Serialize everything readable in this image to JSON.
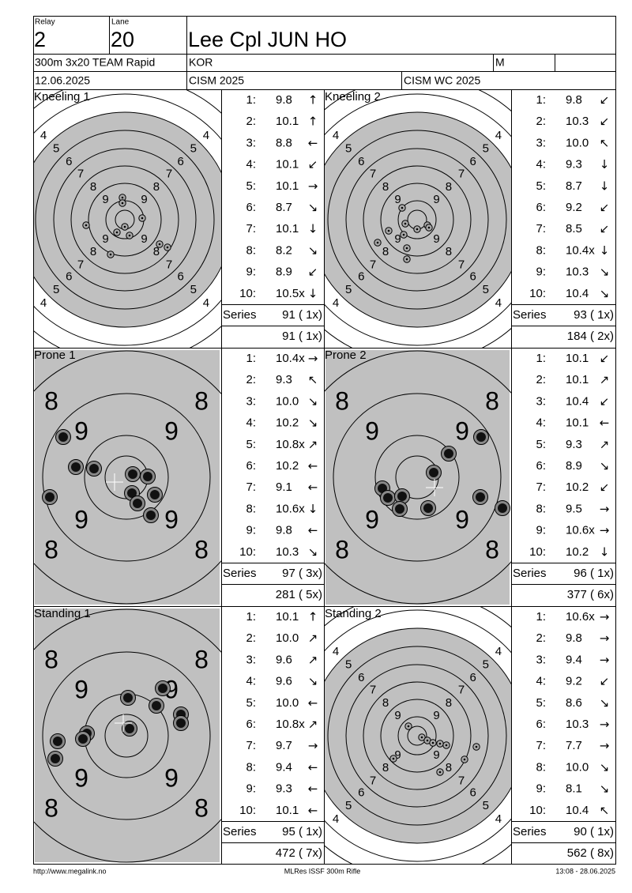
{
  "header": {
    "relay_label": "Relay",
    "relay": "2",
    "lane_label": "Lane",
    "lane": "20",
    "name": "Lee Cpl JUN HO",
    "event": "300m 3x20 TEAM Rapid",
    "nation": "KOR",
    "gender": "M",
    "date": "12.06.2025",
    "competition": "CISM 2025",
    "match": "CISM WC 2025"
  },
  "series": [
    {
      "title": "Kneeling 1",
      "ring_labels": [
        "4",
        "5",
        "6",
        "7",
        "8",
        "9"
      ],
      "shots": [
        {
          "no": "1:",
          "score": "9.8",
          "dir": "↑"
        },
        {
          "no": "2:",
          "score": "10.1",
          "dir": "↑"
        },
        {
          "no": "3:",
          "score": "8.8",
          "dir": "←"
        },
        {
          "no": "4:",
          "score": "10.1",
          "dir": "↙"
        },
        {
          "no": "5:",
          "score": "10.1",
          "dir": "→"
        },
        {
          "no": "6:",
          "score": "8.7",
          "dir": "↘"
        },
        {
          "no": "7:",
          "score": "10.1",
          "dir": "↓"
        },
        {
          "no": "8:",
          "score": "8.2",
          "dir": "↘"
        },
        {
          "no": "9:",
          "score": "8.9",
          "dir": "↙"
        },
        {
          "no": "10:",
          "score": "10.5x",
          "dir": "↓"
        }
      ],
      "series_label": "Series",
      "series_total": "91 ( 1x)",
      "cumulative": "91 ( 1x)"
    },
    {
      "title": "Kneeling 2",
      "ring_labels": [
        "4",
        "5",
        "6",
        "7",
        "8",
        "9"
      ],
      "shots": [
        {
          "no": "1:",
          "score": "9.8",
          "dir": "↙"
        },
        {
          "no": "2:",
          "score": "10.3",
          "dir": "↙"
        },
        {
          "no": "3:",
          "score": "10.0",
          "dir": "↖"
        },
        {
          "no": "4:",
          "score": "9.3",
          "dir": "↓"
        },
        {
          "no": "5:",
          "score": "8.7",
          "dir": "↓"
        },
        {
          "no": "6:",
          "score": "9.2",
          "dir": "↙"
        },
        {
          "no": "7:",
          "score": "8.5",
          "dir": "↙"
        },
        {
          "no": "8:",
          "score": "10.4x",
          "dir": "↓"
        },
        {
          "no": "9:",
          "score": "10.3",
          "dir": "↘"
        },
        {
          "no": "10:",
          "score": "10.4",
          "dir": "↘"
        }
      ],
      "series_label": "Series",
      "series_total": "93 ( 1x)",
      "cumulative": "184 ( 2x)"
    },
    {
      "title": "Prone 1",
      "ring_labels": [
        "8",
        "9"
      ],
      "shots": [
        {
          "no": "1:",
          "score": "10.4x",
          "dir": "→"
        },
        {
          "no": "2:",
          "score": "9.3",
          "dir": "↖"
        },
        {
          "no": "3:",
          "score": "10.0",
          "dir": "↘"
        },
        {
          "no": "4:",
          "score": "10.2",
          "dir": "↘"
        },
        {
          "no": "5:",
          "score": "10.8x",
          "dir": "↗"
        },
        {
          "no": "6:",
          "score": "10.2",
          "dir": "←"
        },
        {
          "no": "7:",
          "score": "9.1",
          "dir": "←"
        },
        {
          "no": "8:",
          "score": "10.6x",
          "dir": "↓"
        },
        {
          "no": "9:",
          "score": "9.8",
          "dir": "←"
        },
        {
          "no": "10:",
          "score": "10.3",
          "dir": "↘"
        }
      ],
      "series_label": "Series",
      "series_total": "97 ( 3x)",
      "cumulative": "281 ( 5x)"
    },
    {
      "title": "Prone 2",
      "ring_labels": [
        "8",
        "9"
      ],
      "shots": [
        {
          "no": "1:",
          "score": "10.1",
          "dir": "↙"
        },
        {
          "no": "2:",
          "score": "10.1",
          "dir": "↗"
        },
        {
          "no": "3:",
          "score": "10.4",
          "dir": "↙"
        },
        {
          "no": "4:",
          "score": "10.1",
          "dir": "←"
        },
        {
          "no": "5:",
          "score": "9.3",
          "dir": "↗"
        },
        {
          "no": "6:",
          "score": "8.9",
          "dir": "↘"
        },
        {
          "no": "7:",
          "score": "10.2",
          "dir": "↙"
        },
        {
          "no": "8:",
          "score": "9.5",
          "dir": "→"
        },
        {
          "no": "9:",
          "score": "10.6x",
          "dir": "→"
        },
        {
          "no": "10:",
          "score": "10.2",
          "dir": "↓"
        }
      ],
      "series_label": "Series",
      "series_total": "96 ( 1x)",
      "cumulative": "377 ( 6x)"
    },
    {
      "title": "Standing 1",
      "ring_labels": [
        "8",
        "9"
      ],
      "shots": [
        {
          "no": "1:",
          "score": "10.1",
          "dir": "↑"
        },
        {
          "no": "2:",
          "score": "10.0",
          "dir": "↗"
        },
        {
          "no": "3:",
          "score": "9.6",
          "dir": "↗"
        },
        {
          "no": "4:",
          "score": "9.6",
          "dir": "↘"
        },
        {
          "no": "5:",
          "score": "10.0",
          "dir": "←"
        },
        {
          "no": "6:",
          "score": "10.8x",
          "dir": "↗"
        },
        {
          "no": "7:",
          "score": "9.7",
          "dir": "→"
        },
        {
          "no": "8:",
          "score": "9.4",
          "dir": "←"
        },
        {
          "no": "9:",
          "score": "9.3",
          "dir": "←"
        },
        {
          "no": "10:",
          "score": "10.1",
          "dir": "←"
        }
      ],
      "series_label": "Series",
      "series_total": "95 ( 1x)",
      "cumulative": "472 ( 7x)"
    },
    {
      "title": "Standing 2",
      "ring_labels": [
        "4",
        "5",
        "6",
        "7",
        "8",
        "9"
      ],
      "shots": [
        {
          "no": "1:",
          "score": "10.6x",
          "dir": "→"
        },
        {
          "no": "2:",
          "score": "9.8",
          "dir": "→"
        },
        {
          "no": "3:",
          "score": "9.4",
          "dir": "→"
        },
        {
          "no": "4:",
          "score": "9.2",
          "dir": "↙"
        },
        {
          "no": "5:",
          "score": "8.6",
          "dir": "↘"
        },
        {
          "no": "6:",
          "score": "10.3",
          "dir": "→"
        },
        {
          "no": "7:",
          "score": "7.7",
          "dir": "→"
        },
        {
          "no": "8:",
          "score": "10.0",
          "dir": "↘"
        },
        {
          "no": "9:",
          "score": "8.1",
          "dir": "↘"
        },
        {
          "no": "10:",
          "score": "10.4",
          "dir": "↖"
        }
      ],
      "series_label": "Series",
      "series_total": "90 ( 1x)",
      "cumulative": "562 ( 8x)"
    }
  ],
  "footer": {
    "url": "http://www.megalink.no",
    "software": "MLRes ISSF 300m Rifle",
    "timestamp": "13:08 - 28.06.2025"
  }
}
